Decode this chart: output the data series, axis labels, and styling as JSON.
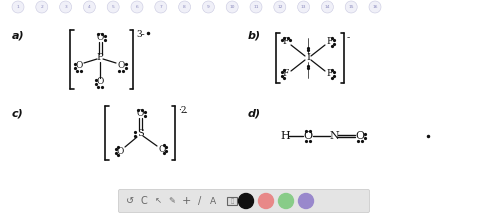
{
  "bg_color": "#ffffff",
  "text_color": "#111111",
  "page_numbers": [
    "1",
    "2",
    "3",
    "4",
    "5",
    "6",
    "7",
    "8",
    "9",
    "10",
    "11",
    "12",
    "13",
    "14",
    "15",
    "16"
  ],
  "circle_color": "#c8c8e0",
  "circle_bg": "#f0f0f8",
  "toolbar_bg": "#e4e4e4",
  "toolbar_border": "#cccccc",
  "colors_tb": [
    "#111111",
    "#e88888",
    "#88cc88",
    "#9988cc"
  ]
}
